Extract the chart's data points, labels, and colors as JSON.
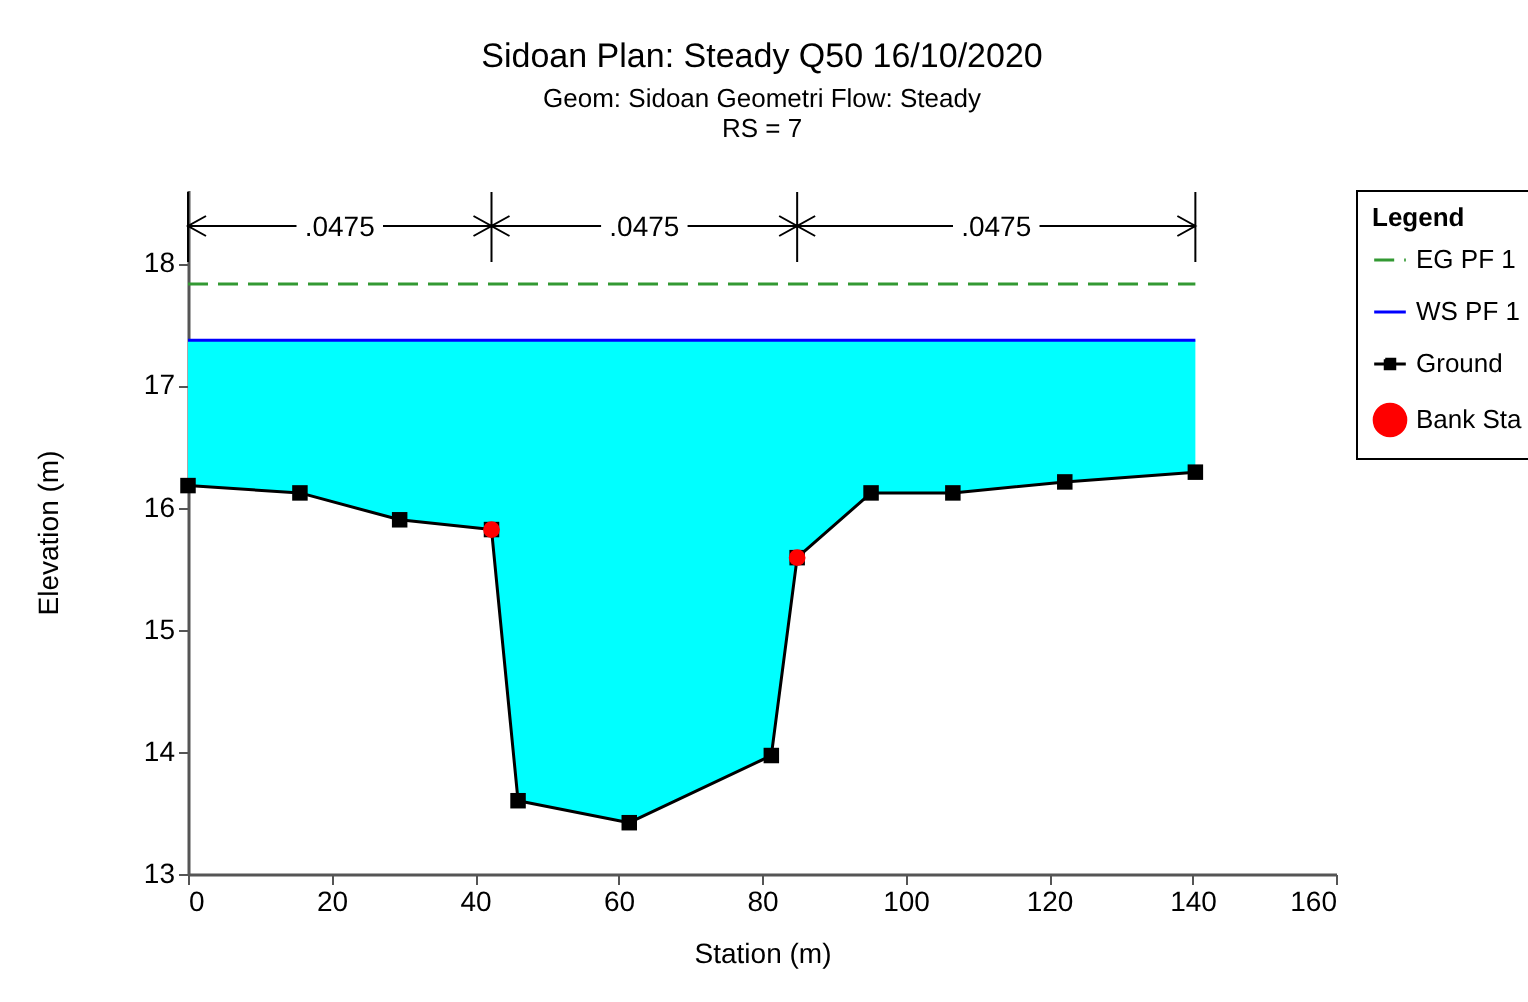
{
  "chart_data": {
    "type": "line",
    "title": "Sidoan     Plan: Steady Q50     16/10/2020",
    "subtitle": "Geom: Sidoan Geometri   Flow: Steady\nRS = 7",
    "xlabel": "Station (m)",
    "ylabel": "Elevation (m)",
    "legend_title": "Legend",
    "legend": "right",
    "xlim": [
      0,
      160
    ],
    "xticks": [
      0,
      20,
      40,
      60,
      80,
      100,
      120,
      140,
      160
    ],
    "ylim": [
      13,
      18.6
    ],
    "yticks": [
      13,
      14,
      15,
      16,
      17,
      18
    ],
    "annotations": [
      ".0475",
      ".0475",
      ".0475"
    ],
    "series": [
      {
        "name": "EG PF 1",
        "color": "#339933",
        "type": "line",
        "line_style": "dashed",
        "x": [
          0,
          140.4
        ],
        "values": [
          17.83,
          17.83
        ]
      },
      {
        "name": "WS PF 1",
        "color": "#0000ff",
        "type": "line",
        "x": [
          0,
          15.6,
          29.5,
          42.3,
          46.0,
          61.5,
          81.3,
          84.9,
          95.2,
          106.6,
          122.2,
          140.4
        ],
        "values": [
          17.37,
          17.37,
          17.37,
          17.37,
          17.37,
          17.37,
          17.37,
          17.37,
          17.37,
          17.37,
          17.37,
          17.37
        ],
        "lower": [
          16.18,
          16.12,
          15.9,
          15.82,
          13.6,
          13.42,
          13.97,
          15.59,
          16.12,
          16.12,
          16.21,
          16.29
        ],
        "upper": [
          17.37,
          17.37,
          17.37,
          17.37,
          17.37,
          17.37,
          17.37,
          17.37,
          17.37,
          17.37,
          17.37,
          17.37
        ]
      },
      {
        "name": "Ground",
        "color": "#000000",
        "type": "line",
        "marker": "square",
        "x": [
          0,
          15.6,
          29.5,
          42.3,
          46.0,
          61.5,
          81.3,
          84.9,
          95.2,
          106.6,
          122.2,
          140.4
        ],
        "values": [
          16.18,
          16.12,
          15.9,
          15.82,
          13.6,
          13.42,
          13.97,
          15.59,
          16.12,
          16.12,
          16.21,
          16.29
        ]
      },
      {
        "name": "Bank Sta",
        "color": "#ff0000",
        "type": "scatter",
        "marker": "circle",
        "x": [
          42.3,
          84.9
        ],
        "values": [
          15.82,
          15.59
        ]
      }
    ]
  }
}
